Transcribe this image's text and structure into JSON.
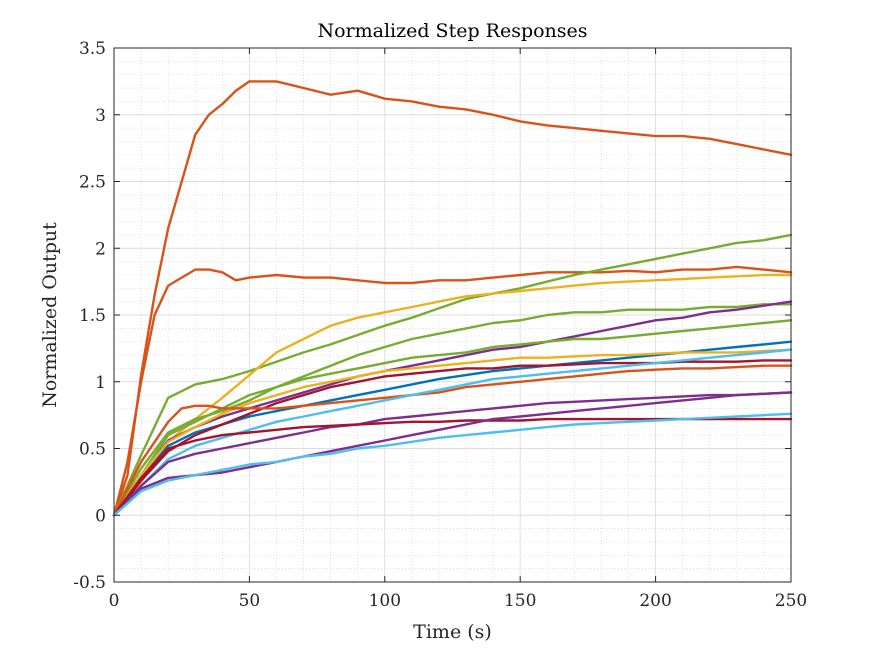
{
  "chart_data": {
    "type": "line",
    "title": "Normalized Step Responses",
    "xlabel": "Time (s)",
    "ylabel": "Normalized Output",
    "xlim": [
      0,
      250
    ],
    "ylim": [
      -0.5,
      3.5
    ],
    "xticks": [
      0,
      50,
      100,
      150,
      200,
      250
    ],
    "yticks": [
      -0.5,
      0,
      0.5,
      1,
      1.5,
      2,
      2.5,
      3,
      3.5
    ],
    "xtick_labels": [
      "0",
      "50",
      "100",
      "150",
      "200",
      "250"
    ],
    "ytick_labels": [
      "-0.5",
      "0",
      "0.5",
      "1",
      "1.5",
      "2",
      "2.5",
      "3",
      "3.5"
    ],
    "grid": "major and minor",
    "legend": "none",
    "series": [
      {
        "color": "#D95319",
        "x": [
          0,
          5,
          10,
          15,
          20,
          25,
          30,
          35,
          40,
          45,
          50,
          60,
          70,
          80,
          90,
          100,
          110,
          120,
          130,
          140,
          150,
          160,
          170,
          180,
          190,
          200,
          210,
          220,
          230,
          240,
          250
        ],
        "y": [
          0,
          0.3,
          1.05,
          1.65,
          2.15,
          2.5,
          2.85,
          3.0,
          3.08,
          3.18,
          3.25,
          3.25,
          3.2,
          3.15,
          3.18,
          3.12,
          3.1,
          3.06,
          3.04,
          3.0,
          2.95,
          2.92,
          2.9,
          2.88,
          2.86,
          2.84,
          2.84,
          2.82,
          2.78,
          2.74,
          2.7
        ]
      },
      {
        "color": "#D95319",
        "x": [
          0,
          5,
          10,
          15,
          20,
          25,
          30,
          35,
          40,
          45,
          50,
          60,
          70,
          80,
          90,
          100,
          110,
          120,
          130,
          140,
          150,
          160,
          170,
          180,
          190,
          200,
          210,
          220,
          230,
          240,
          250
        ],
        "y": [
          0,
          0.4,
          1.0,
          1.5,
          1.72,
          1.78,
          1.84,
          1.84,
          1.82,
          1.76,
          1.78,
          1.8,
          1.78,
          1.78,
          1.76,
          1.74,
          1.74,
          1.76,
          1.76,
          1.78,
          1.8,
          1.82,
          1.82,
          1.82,
          1.83,
          1.82,
          1.84,
          1.84,
          1.86,
          1.84,
          1.82
        ]
      },
      {
        "color": "#77AC30",
        "x": [
          0,
          10,
          20,
          30,
          40,
          50,
          60,
          70,
          80,
          90,
          100,
          110,
          120,
          130,
          140,
          150,
          160,
          170,
          180,
          190,
          200,
          210,
          220,
          230,
          240,
          250
        ],
        "y": [
          0,
          0.45,
          0.88,
          0.98,
          1.02,
          1.08,
          1.15,
          1.22,
          1.28,
          1.35,
          1.42,
          1.48,
          1.55,
          1.62,
          1.66,
          1.7,
          1.75,
          1.8,
          1.84,
          1.88,
          1.92,
          1.96,
          2.0,
          2.04,
          2.06,
          2.1
        ]
      },
      {
        "color": "#EDB120",
        "x": [
          0,
          10,
          20,
          30,
          40,
          50,
          60,
          70,
          80,
          90,
          100,
          110,
          120,
          130,
          140,
          150,
          160,
          170,
          180,
          190,
          200,
          210,
          220,
          230,
          240,
          250
        ],
        "y": [
          0,
          0.25,
          0.55,
          0.72,
          0.88,
          1.05,
          1.22,
          1.32,
          1.42,
          1.48,
          1.52,
          1.56,
          1.6,
          1.64,
          1.66,
          1.68,
          1.7,
          1.72,
          1.74,
          1.75,
          1.76,
          1.77,
          1.78,
          1.79,
          1.8,
          1.8
        ]
      },
      {
        "color": "#77AC30",
        "x": [
          0,
          10,
          20,
          30,
          40,
          50,
          60,
          70,
          80,
          90,
          100,
          110,
          120,
          130,
          140,
          150,
          160,
          170,
          180,
          190,
          200,
          210,
          220,
          230,
          240,
          250
        ],
        "y": [
          0,
          0.35,
          0.62,
          0.72,
          0.78,
          0.86,
          0.96,
          1.04,
          1.12,
          1.2,
          1.26,
          1.32,
          1.36,
          1.4,
          1.44,
          1.46,
          1.5,
          1.52,
          1.52,
          1.54,
          1.54,
          1.54,
          1.56,
          1.56,
          1.58,
          1.58
        ]
      },
      {
        "color": "#7E2F8E",
        "x": [
          0,
          10,
          20,
          30,
          40,
          50,
          60,
          70,
          80,
          90,
          100,
          110,
          120,
          130,
          140,
          150,
          160,
          170,
          180,
          190,
          200,
          210,
          220,
          230,
          240,
          250
        ],
        "y": [
          0,
          0.3,
          0.56,
          0.66,
          0.74,
          0.8,
          0.86,
          0.92,
          0.98,
          1.04,
          1.08,
          1.12,
          1.16,
          1.2,
          1.24,
          1.26,
          1.3,
          1.34,
          1.38,
          1.42,
          1.46,
          1.48,
          1.52,
          1.54,
          1.57,
          1.6
        ]
      },
      {
        "color": "#77AC30",
        "x": [
          0,
          10,
          20,
          30,
          40,
          50,
          60,
          70,
          80,
          90,
          100,
          110,
          120,
          130,
          140,
          150,
          160,
          170,
          180,
          190,
          200,
          210,
          220,
          230,
          240,
          250
        ],
        "y": [
          0,
          0.3,
          0.6,
          0.7,
          0.8,
          0.9,
          0.96,
          1.02,
          1.06,
          1.1,
          1.14,
          1.18,
          1.2,
          1.22,
          1.26,
          1.28,
          1.3,
          1.32,
          1.32,
          1.34,
          1.36,
          1.38,
          1.4,
          1.42,
          1.44,
          1.46
        ]
      },
      {
        "color": "#0072BD",
        "x": [
          0,
          10,
          20,
          30,
          40,
          50,
          60,
          70,
          80,
          90,
          100,
          110,
          120,
          130,
          140,
          150,
          160,
          170,
          180,
          190,
          200,
          210,
          220,
          230,
          240,
          250
        ],
        "y": [
          0,
          0.28,
          0.52,
          0.62,
          0.68,
          0.74,
          0.78,
          0.82,
          0.86,
          0.9,
          0.94,
          0.98,
          1.02,
          1.05,
          1.08,
          1.1,
          1.12,
          1.14,
          1.16,
          1.18,
          1.2,
          1.22,
          1.24,
          1.26,
          1.28,
          1.3
        ]
      },
      {
        "color": "#EDB120",
        "x": [
          0,
          10,
          20,
          30,
          40,
          50,
          60,
          70,
          80,
          90,
          100,
          110,
          120,
          130,
          140,
          150,
          160,
          170,
          180,
          190,
          200,
          210,
          220,
          230,
          240,
          250
        ],
        "y": [
          0,
          0.3,
          0.55,
          0.66,
          0.76,
          0.84,
          0.9,
          0.96,
          1.0,
          1.04,
          1.08,
          1.1,
          1.12,
          1.14,
          1.16,
          1.18,
          1.18,
          1.19,
          1.2,
          1.2,
          1.21,
          1.22,
          1.22,
          1.22,
          1.23,
          1.24
        ]
      },
      {
        "color": "#A2142F",
        "x": [
          0,
          10,
          20,
          30,
          40,
          50,
          60,
          70,
          80,
          90,
          100,
          110,
          120,
          130,
          140,
          150,
          160,
          170,
          180,
          190,
          200,
          210,
          220,
          230,
          240,
          250
        ],
        "y": [
          0,
          0.26,
          0.48,
          0.6,
          0.68,
          0.76,
          0.84,
          0.9,
          0.96,
          1.0,
          1.04,
          1.06,
          1.08,
          1.1,
          1.1,
          1.12,
          1.12,
          1.13,
          1.14,
          1.14,
          1.14,
          1.15,
          1.15,
          1.15,
          1.16,
          1.16
        ]
      },
      {
        "color": "#D95319",
        "x": [
          0,
          10,
          20,
          25,
          30,
          35,
          40,
          50,
          60,
          70,
          80,
          90,
          100,
          110,
          120,
          130,
          140,
          150,
          160,
          170,
          180,
          190,
          200,
          210,
          220,
          230,
          240,
          250
        ],
        "y": [
          0,
          0.4,
          0.7,
          0.8,
          0.82,
          0.82,
          0.8,
          0.8,
          0.8,
          0.82,
          0.84,
          0.86,
          0.88,
          0.9,
          0.92,
          0.96,
          0.98,
          1.0,
          1.02,
          1.04,
          1.06,
          1.08,
          1.09,
          1.1,
          1.1,
          1.11,
          1.12,
          1.12
        ]
      },
      {
        "color": "#4DBEEE",
        "x": [
          0,
          10,
          20,
          30,
          40,
          50,
          60,
          70,
          80,
          90,
          100,
          110,
          120,
          130,
          140,
          150,
          160,
          170,
          180,
          190,
          200,
          210,
          220,
          230,
          240,
          250
        ],
        "y": [
          0,
          0.22,
          0.42,
          0.52,
          0.58,
          0.64,
          0.7,
          0.74,
          0.78,
          0.82,
          0.86,
          0.9,
          0.94,
          0.98,
          1.02,
          1.04,
          1.06,
          1.08,
          1.1,
          1.12,
          1.14,
          1.16,
          1.18,
          1.2,
          1.22,
          1.24
        ]
      },
      {
        "color": "#7E2F8E",
        "x": [
          0,
          10,
          20,
          30,
          40,
          50,
          60,
          70,
          80,
          90,
          100,
          110,
          120,
          130,
          140,
          150,
          160,
          170,
          180,
          190,
          200,
          210,
          220,
          230,
          240,
          250
        ],
        "y": [
          0,
          0.22,
          0.4,
          0.46,
          0.5,
          0.54,
          0.58,
          0.62,
          0.66,
          0.68,
          0.72,
          0.74,
          0.76,
          0.78,
          0.8,
          0.82,
          0.84,
          0.85,
          0.86,
          0.87,
          0.88,
          0.89,
          0.9,
          0.9,
          0.91,
          0.92
        ]
      },
      {
        "color": "#A2142F",
        "x": [
          0,
          10,
          20,
          30,
          40,
          50,
          60,
          70,
          80,
          90,
          100,
          110,
          120,
          130,
          140,
          150,
          160,
          170,
          180,
          190,
          200,
          210,
          220,
          230,
          240,
          250
        ],
        "y": [
          0,
          0.28,
          0.5,
          0.56,
          0.6,
          0.62,
          0.64,
          0.66,
          0.67,
          0.68,
          0.69,
          0.7,
          0.7,
          0.71,
          0.71,
          0.71,
          0.72,
          0.72,
          0.72,
          0.72,
          0.72,
          0.72,
          0.72,
          0.72,
          0.72,
          0.72
        ]
      },
      {
        "color": "#7E2F8E",
        "x": [
          0,
          10,
          20,
          30,
          40,
          50,
          60,
          70,
          80,
          90,
          100,
          110,
          120,
          130,
          140,
          150,
          160,
          170,
          180,
          190,
          200,
          210,
          220,
          230,
          240,
          250
        ],
        "y": [
          0,
          0.2,
          0.28,
          0.3,
          0.32,
          0.36,
          0.4,
          0.44,
          0.48,
          0.52,
          0.56,
          0.6,
          0.64,
          0.68,
          0.72,
          0.74,
          0.76,
          0.78,
          0.8,
          0.82,
          0.84,
          0.86,
          0.88,
          0.9,
          0.91,
          0.92
        ]
      },
      {
        "color": "#4DBEEE",
        "x": [
          0,
          10,
          20,
          30,
          40,
          50,
          60,
          70,
          80,
          90,
          100,
          110,
          120,
          130,
          140,
          150,
          160,
          170,
          180,
          190,
          200,
          210,
          220,
          230,
          240,
          250
        ],
        "y": [
          0,
          0.18,
          0.26,
          0.3,
          0.34,
          0.38,
          0.4,
          0.44,
          0.46,
          0.5,
          0.52,
          0.55,
          0.58,
          0.6,
          0.62,
          0.64,
          0.66,
          0.68,
          0.69,
          0.7,
          0.71,
          0.72,
          0.73,
          0.74,
          0.75,
          0.76
        ]
      }
    ]
  }
}
